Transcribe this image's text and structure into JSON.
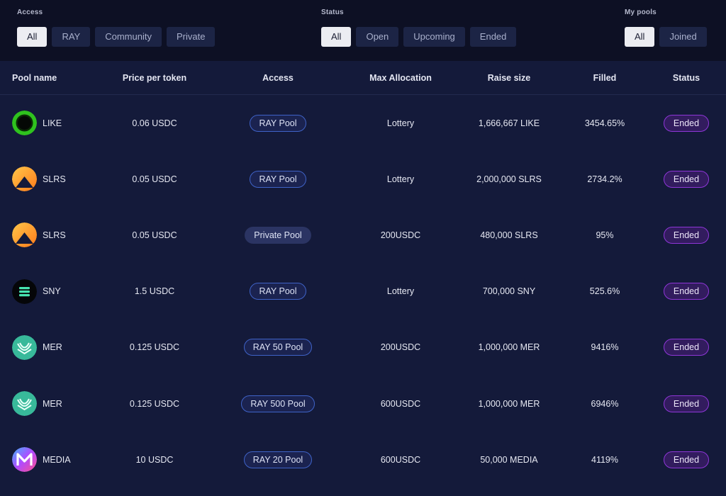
{
  "filters": {
    "access": {
      "label": "Access",
      "options": [
        "All",
        "RAY",
        "Community",
        "Private"
      ],
      "selected": "All"
    },
    "status": {
      "label": "Status",
      "options": [
        "All",
        "Open",
        "Upcoming",
        "Ended"
      ],
      "selected": "All"
    },
    "my_pools": {
      "label": "My pools",
      "options": [
        "All",
        "Joined"
      ],
      "selected": "All"
    }
  },
  "table": {
    "headers": [
      "Pool name",
      "Price per token",
      "Access",
      "Max Allocation",
      "Raise size",
      "Filled",
      "Status"
    ],
    "rows": [
      {
        "name": "LIKE",
        "icon": "like-token-icon",
        "price": "0.06 USDC",
        "access": "RAY Pool",
        "max": "Lottery",
        "raise": "1,666,667 LIKE",
        "filled": "3454.65%",
        "status": "Ended"
      },
      {
        "name": "SLRS",
        "icon": "slrs-token-icon",
        "price": "0.05 USDC",
        "access": "RAY Pool",
        "max": "Lottery",
        "raise": "2,000,000 SLRS",
        "filled": "2734.2%",
        "status": "Ended"
      },
      {
        "name": "SLRS",
        "icon": "slrs-token-icon",
        "price": "0.05 USDC",
        "access": "Private Pool",
        "max": "200USDC",
        "raise": "480,000 SLRS",
        "filled": "95%",
        "status": "Ended"
      },
      {
        "name": "SNY",
        "icon": "sny-token-icon",
        "price": "1.5 USDC",
        "access": "RAY Pool",
        "max": "Lottery",
        "raise": "700,000 SNY",
        "filled": "525.6%",
        "status": "Ended"
      },
      {
        "name": "MER",
        "icon": "mer-token-icon",
        "price": "0.125 USDC",
        "access": "RAY 50 Pool",
        "max": "200USDC",
        "raise": "1,000,000 MER",
        "filled": "9416%",
        "status": "Ended"
      },
      {
        "name": "MER",
        "icon": "mer-token-icon",
        "price": "0.125 USDC",
        "access": "RAY 500 Pool",
        "max": "600USDC",
        "raise": "1,000,000 MER",
        "filled": "6946%",
        "status": "Ended"
      },
      {
        "name": "MEDIA",
        "icon": "media-token-icon",
        "price": "10 USDC",
        "access": "RAY 20 Pool",
        "max": "600USDC",
        "raise": "50,000 MEDIA",
        "filled": "4119%",
        "status": "Ended"
      }
    ]
  },
  "colors": {
    "page_bg": "#0d1024",
    "table_bg": "#141a3a",
    "chip_active_bg": "#ecedf2",
    "chip_bg": "#1c2445",
    "pool_pill_border": "#3f63c8",
    "status_pill_border": "#8f36d8"
  }
}
